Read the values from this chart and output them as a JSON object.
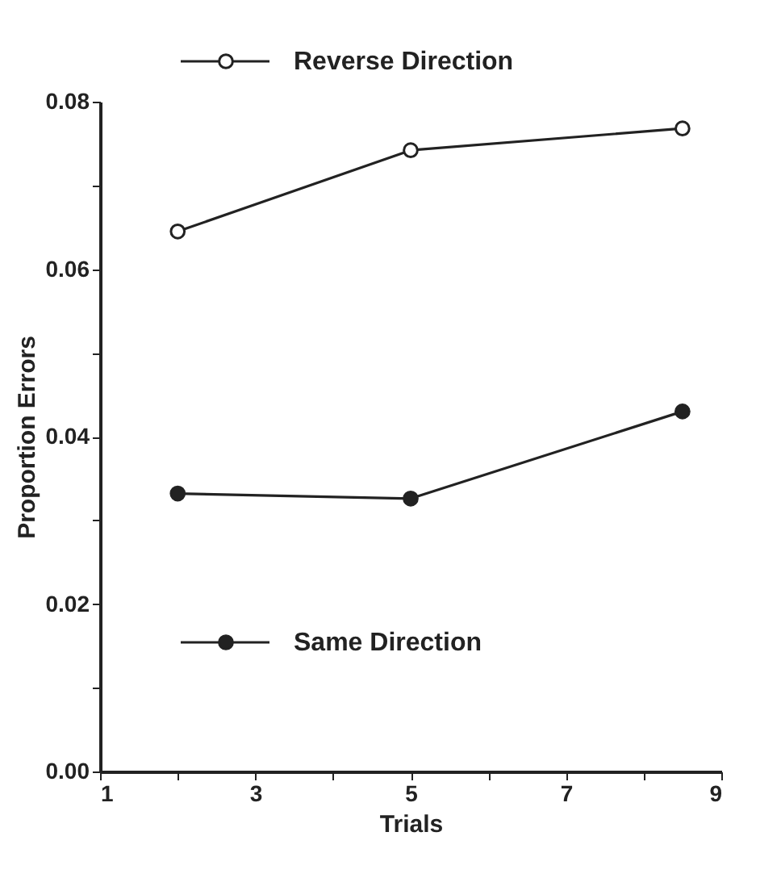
{
  "chart_data": {
    "type": "line",
    "xlabel": "Trials",
    "ylabel": "Proportion Errors",
    "x": [
      2,
      5,
      8.5
    ],
    "series": [
      {
        "name": "Reverse Direction",
        "color": "#222222",
        "marker": "circle-open",
        "values": [
          0.0645,
          0.0742,
          0.0768
        ]
      },
      {
        "name": "Same Direction",
        "color": "#222222",
        "marker": "circle",
        "values": [
          0.0332,
          0.0326,
          0.043
        ]
      }
    ],
    "xlim": [
      1,
      9
    ],
    "xticks": [
      1,
      {
        "value": 2,
        "label": null
      },
      3,
      {
        "value": 4,
        "label": null
      },
      5,
      {
        "value": 6,
        "label": null
      },
      7,
      {
        "value": 8,
        "label": null
      },
      9
    ],
    "ylim": [
      0,
      0.08
    ],
    "yticks": [
      {
        "value": 0,
        "label": "0.00"
      },
      {
        "value": 0.01,
        "label": null
      },
      {
        "value": 0.02,
        "label": "0.02"
      },
      {
        "value": 0.03,
        "label": null
      },
      {
        "value": 0.04,
        "label": "0.04"
      },
      {
        "value": 0.05,
        "label": null
      },
      {
        "value": 0.06,
        "label": "0.06"
      },
      {
        "value": 0.07,
        "label": null
      },
      {
        "value": 0.08,
        "label": "0.08"
      }
    ],
    "legend": "top",
    "grid": false,
    "line_style": "solid"
  }
}
